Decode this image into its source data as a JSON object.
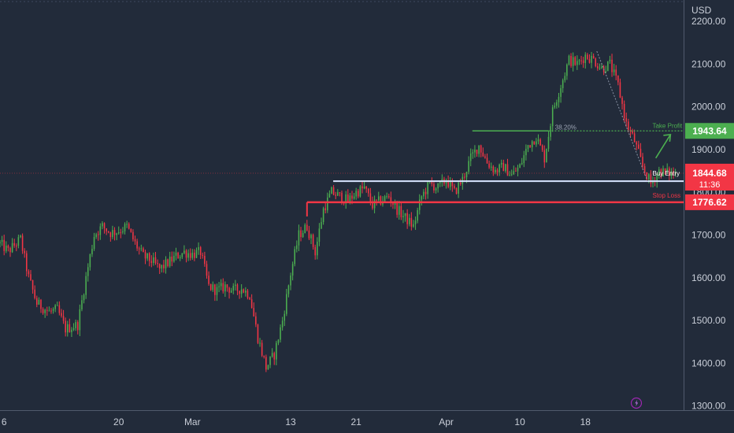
{
  "chart_data": {
    "type": "candlestick",
    "currency_label": "USD",
    "ylim": [
      1290,
      2250
    ],
    "y_ticks": [
      1300,
      1400,
      1500,
      1600,
      1700,
      1800,
      1900,
      2000,
      2100,
      2200
    ],
    "y_tick_labels": [
      "1300.00",
      "1400.00",
      "1500.00",
      "1600.00",
      "1700.00",
      "1800.00",
      "1900.00",
      "2000.00",
      "2100.00",
      "2200.00"
    ],
    "x_ticks": [
      {
        "label": "6",
        "day": 0
      },
      {
        "label": "20",
        "day": 14
      },
      {
        "label": "Mar",
        "day": 23
      },
      {
        "label": "13",
        "day": 35
      },
      {
        "label": "21",
        "day": 43
      },
      {
        "label": "Apr",
        "day": 54
      },
      {
        "label": "10",
        "day": 63
      },
      {
        "label": "18",
        "day": 71
      }
    ],
    "xlim_days": [
      -0.5,
      83
    ],
    "price_path": [
      [
        -0.5,
        1680
      ],
      [
        0.5,
        1662
      ],
      [
        2,
        1690
      ],
      [
        3,
        1600
      ],
      [
        4,
        1540
      ],
      [
        5.5,
        1520
      ],
      [
        6.5,
        1525
      ],
      [
        7.5,
        1480
      ],
      [
        9,
        1490
      ],
      [
        10,
        1600
      ],
      [
        11,
        1700
      ],
      [
        12,
        1720
      ],
      [
        13,
        1705
      ],
      [
        14,
        1710
      ],
      [
        15,
        1720
      ],
      [
        16,
        1680
      ],
      [
        17,
        1650
      ],
      [
        18,
        1640
      ],
      [
        19,
        1620
      ],
      [
        20,
        1635
      ],
      [
        21,
        1650
      ],
      [
        22,
        1660
      ],
      [
        23,
        1655
      ],
      [
        24,
        1660
      ],
      [
        25,
        1580
      ],
      [
        26,
        1570
      ],
      [
        27,
        1580
      ],
      [
        28,
        1570
      ],
      [
        29,
        1575
      ],
      [
        30,
        1560
      ],
      [
        31,
        1460
      ],
      [
        32,
        1390
      ],
      [
        33,
        1420
      ],
      [
        34,
        1500
      ],
      [
        35,
        1610
      ],
      [
        36,
        1700
      ],
      [
        37,
        1720
      ],
      [
        38,
        1660
      ],
      [
        39,
        1760
      ],
      [
        40,
        1800
      ],
      [
        41,
        1790
      ],
      [
        42,
        1780
      ],
      [
        43,
        1800
      ],
      [
        44,
        1810
      ],
      [
        45,
        1770
      ],
      [
        46,
        1780
      ],
      [
        47,
        1790
      ],
      [
        48,
        1760
      ],
      [
        49,
        1740
      ],
      [
        50,
        1720
      ],
      [
        51,
        1790
      ],
      [
        52,
        1820
      ],
      [
        53,
        1810
      ],
      [
        54,
        1830
      ],
      [
        55,
        1800
      ],
      [
        56,
        1830
      ],
      [
        57,
        1880
      ],
      [
        58,
        1910
      ],
      [
        59,
        1870
      ],
      [
        60,
        1850
      ],
      [
        61,
        1860
      ],
      [
        62,
        1840
      ],
      [
        63,
        1860
      ],
      [
        64,
        1910
      ],
      [
        65,
        1930
      ],
      [
        66,
        1880
      ],
      [
        67,
        1990
      ],
      [
        68,
        2050
      ],
      [
        69,
        2110
      ],
      [
        70,
        2100
      ],
      [
        71,
        2120
      ],
      [
        72,
        2110
      ],
      [
        73,
        2090
      ],
      [
        74,
        2100
      ],
      [
        75,
        2050
      ],
      [
        76,
        1960
      ],
      [
        77,
        1920
      ],
      [
        78,
        1860
      ],
      [
        79,
        1820
      ],
      [
        80,
        1850
      ],
      [
        81,
        1845
      ],
      [
        82,
        1844.68
      ]
    ],
    "levels": [
      {
        "name": "Take Profit",
        "value": 1943.64,
        "tag": "1943.64",
        "color": "#4caf50"
      },
      {
        "name": "Buy Entry",
        "value": 1826,
        "tag": "",
        "color": "#d8e4ff"
      },
      {
        "name": "Stop Loss",
        "value": 1776.62,
        "tag": "1776.62",
        "color": "#f23645"
      }
    ],
    "fib_label": "38.20%",
    "current_price": {
      "value": 1844.68,
      "tag": "1844.68",
      "countdown": "11:36",
      "color": "#f23645"
    }
  }
}
